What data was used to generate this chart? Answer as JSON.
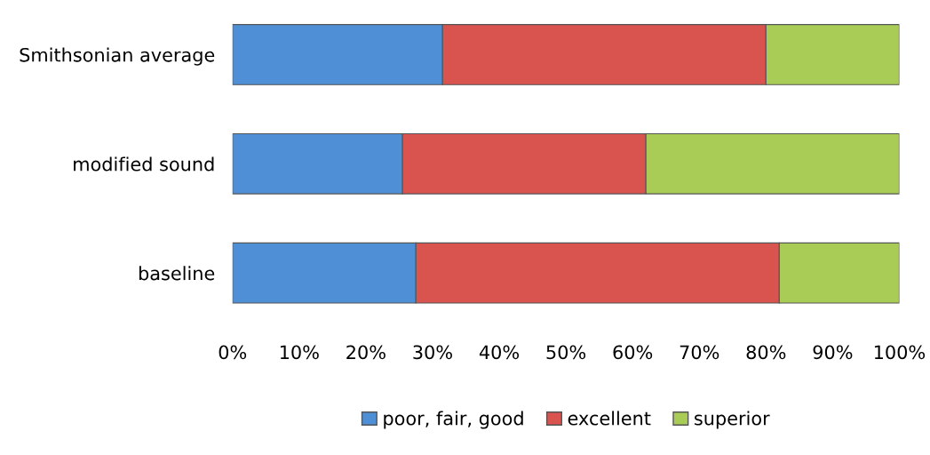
{
  "chart_data": {
    "type": "bar",
    "orientation": "horizontal",
    "stacked": true,
    "categories": [
      "Smithsonian average",
      "modified sound",
      "baseline"
    ],
    "series": [
      {
        "name": "poor, fair, good",
        "color": "#4f8fd6",
        "values": [
          31.5,
          25.5,
          27.5
        ]
      },
      {
        "name": "excellent",
        "color": "#d9534f",
        "values": [
          48.5,
          36.5,
          54.5
        ]
      },
      {
        "name": "superior",
        "color": "#a8cc55",
        "values": [
          20,
          38,
          18
        ]
      }
    ],
    "xlim": [
      0,
      100
    ],
    "xticks": [
      {
        "value": 0,
        "label": "0%"
      },
      {
        "value": 10,
        "label": "10%"
      },
      {
        "value": 20,
        "label": "20%"
      },
      {
        "value": 30,
        "label": "30%"
      },
      {
        "value": 40,
        "label": "40%"
      },
      {
        "value": 50,
        "label": "50%"
      },
      {
        "value": 60,
        "label": "60%"
      },
      {
        "value": 70,
        "label": "70%"
      },
      {
        "value": 80,
        "label": "80%"
      },
      {
        "value": 90,
        "label": "90%"
      },
      {
        "value": 100,
        "label": "100%"
      }
    ],
    "grid": false,
    "legend": "bottom"
  }
}
